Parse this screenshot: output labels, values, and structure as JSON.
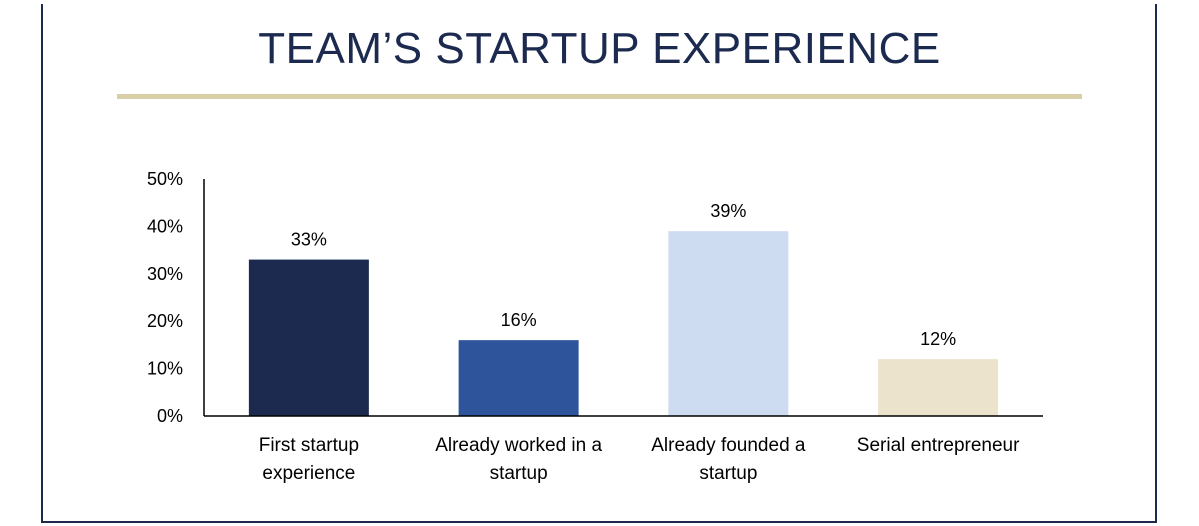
{
  "title": "TEAM’S STARTUP EXPERIENCE",
  "colors": {
    "title": "#1b2a4e",
    "rule": "#d8cfa6",
    "frame": "#1b2a4e"
  },
  "chart_data": {
    "type": "bar",
    "categories": [
      [
        "First startup",
        "experience"
      ],
      [
        "Already worked in a",
        "startup"
      ],
      [
        "Already founded a",
        "startup"
      ],
      [
        "Serial entrepreneur"
      ]
    ],
    "values": [
      33,
      16,
      39,
      12
    ],
    "data_labels": [
      "33%",
      "16%",
      "39%",
      "12%"
    ],
    "bar_colors": [
      "#1b2a4e",
      "#2e549c",
      "#cddcf1",
      "#ebe3cc"
    ],
    "ylim": [
      0,
      50
    ],
    "yticks": [
      0,
      10,
      20,
      30,
      40,
      50
    ],
    "ytick_labels": [
      "0%",
      "10%",
      "20%",
      "30%",
      "40%",
      "50%"
    ],
    "grid": false,
    "legend": "none"
  }
}
